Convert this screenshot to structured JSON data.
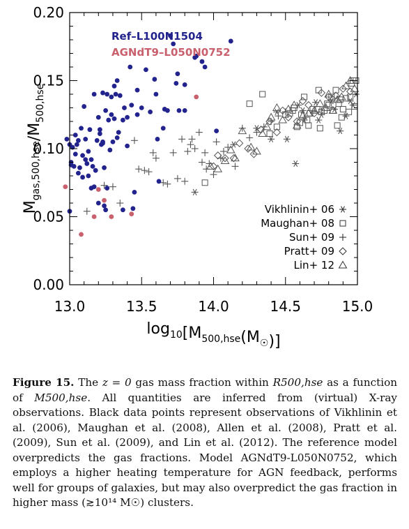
{
  "chart_data": {
    "type": "scatter",
    "xlabel": "log10[M500,hse(M☉)]",
    "ylabel": "Mgas,500,hse/M500,hse",
    "xlim": [
      13.0,
      15.0
    ],
    "ylim": [
      0.0,
      0.2
    ],
    "x_ticks": [
      "13.0",
      "13.5",
      "14.0",
      "14.5",
      "15.0"
    ],
    "y_ticks": [
      "0.00",
      "0.05",
      "0.10",
      "0.15",
      "0.20"
    ],
    "grid": false,
    "legend_top_left": [
      "Ref–L100N1504",
      "AGNdT9–L050N0752"
    ],
    "legend_bottom_right": [
      "Vikhlinin+ 06",
      "Maughan+ 08",
      "Sun+ 09",
      "Pratt+ 09",
      "Lin+ 12"
    ],
    "colors": {
      "ref": "#23238e",
      "agn": "#c9606e",
      "obs": "#555555"
    },
    "series": [
      {
        "name": "Ref–L100N1504",
        "marker": "filled-circle",
        "color": "#23238e",
        "points": [
          [
            12.98,
            0.107
          ],
          [
            13.0,
            0.103
          ],
          [
            13.0,
            0.054
          ],
          [
            13.01,
            0.088
          ],
          [
            13.01,
            0.09
          ],
          [
            13.02,
            0.101
          ],
          [
            13.03,
            0.087
          ],
          [
            13.04,
            0.096
          ],
          [
            13.04,
            0.11
          ],
          [
            13.05,
            0.103
          ],
          [
            13.06,
            0.106
          ],
          [
            13.06,
            0.082
          ],
          [
            13.07,
            0.086
          ],
          [
            13.08,
            0.115
          ],
          [
            13.09,
            0.095
          ],
          [
            13.09,
            0.079
          ],
          [
            13.1,
            0.131
          ],
          [
            13.11,
            0.107
          ],
          [
            13.11,
            0.092
          ],
          [
            13.12,
            0.089
          ],
          [
            13.13,
            0.08
          ],
          [
            13.13,
            0.098
          ],
          [
            13.14,
            0.114
          ],
          [
            13.15,
            0.092
          ],
          [
            13.15,
            0.071
          ],
          [
            13.16,
            0.087
          ],
          [
            13.17,
            0.14
          ],
          [
            13.17,
            0.072
          ],
          [
            13.18,
            0.084
          ],
          [
            13.19,
            0.106
          ],
          [
            13.2,
            0.123
          ],
          [
            13.2,
            0.06
          ],
          [
            13.21,
            0.111
          ],
          [
            13.21,
            0.114
          ],
          [
            13.22,
            0.103
          ],
          [
            13.23,
            0.105
          ],
          [
            13.23,
            0.104
          ],
          [
            13.23,
            0.141
          ],
          [
            13.24,
            0.086
          ],
          [
            13.24,
            0.058
          ],
          [
            13.25,
            0.128
          ],
          [
            13.25,
            0.055
          ],
          [
            13.26,
            0.071
          ],
          [
            13.26,
            0.14
          ],
          [
            13.27,
            0.121
          ],
          [
            13.28,
            0.099
          ],
          [
            13.29,
            0.125
          ],
          [
            13.29,
            0.138
          ],
          [
            13.3,
            0.105
          ],
          [
            13.31,
            0.146
          ],
          [
            13.31,
            0.122
          ],
          [
            13.32,
            0.14
          ],
          [
            13.33,
            0.15
          ],
          [
            13.33,
            0.108
          ],
          [
            13.34,
            0.112
          ],
          [
            13.35,
            0.139
          ],
          [
            13.37,
            0.121
          ],
          [
            13.37,
            0.055
          ],
          [
            13.38,
            0.13
          ],
          [
            13.4,
            0.102
          ],
          [
            13.4,
            0.123
          ],
          [
            13.42,
            0.16
          ],
          [
            13.43,
            0.132
          ],
          [
            13.44,
            0.056
          ],
          [
            13.45,
            0.068
          ],
          [
            13.47,
            0.125
          ],
          [
            13.47,
            0.143
          ],
          [
            13.5,
            0.13
          ],
          [
            13.53,
            0.158
          ],
          [
            13.56,
            0.127
          ],
          [
            13.59,
            0.151
          ],
          [
            13.6,
            0.14
          ],
          [
            13.61,
            0.107
          ],
          [
            13.62,
            0.076
          ],
          [
            13.65,
            0.115
          ],
          [
            13.66,
            0.129
          ],
          [
            13.68,
            0.128
          ],
          [
            13.7,
            0.183
          ],
          [
            13.72,
            0.177
          ],
          [
            13.74,
            0.148
          ],
          [
            13.75,
            0.155
          ],
          [
            13.76,
            0.128
          ],
          [
            13.8,
            0.128
          ],
          [
            13.8,
            0.147
          ],
          [
            13.87,
            0.167
          ],
          [
            13.88,
            0.168
          ],
          [
            13.92,
            0.164
          ],
          [
            13.94,
            0.16
          ],
          [
            14.02,
            0.113
          ],
          [
            14.12,
            0.179
          ]
        ]
      },
      {
        "name": "AGNdT9–L050N0752",
        "marker": "filled-circle",
        "color": "#c9606e",
        "points": [
          [
            12.97,
            0.072
          ],
          [
            13.08,
            0.037
          ],
          [
            13.17,
            0.05
          ],
          [
            13.2,
            0.07
          ],
          [
            13.24,
            0.062
          ],
          [
            13.29,
            0.05
          ],
          [
            13.43,
            0.052
          ],
          [
            13.88,
            0.138
          ]
        ]
      },
      {
        "name": "Vikhlinin+ 06",
        "marker": "asterisk",
        "color": "#555555",
        "points": [
          [
            13.87,
            0.068
          ],
          [
            14.14,
            0.103
          ],
          [
            14.3,
            0.115
          ],
          [
            14.4,
            0.107
          ],
          [
            14.44,
            0.127
          ],
          [
            14.51,
            0.107
          ],
          [
            14.57,
            0.089
          ],
          [
            14.59,
            0.132
          ],
          [
            14.62,
            0.128
          ],
          [
            14.63,
            0.121
          ],
          [
            14.71,
            0.134
          ],
          [
            14.73,
            0.121
          ],
          [
            14.75,
            0.125
          ],
          [
            14.82,
            0.135
          ],
          [
            14.84,
            0.129
          ],
          [
            14.88,
            0.113
          ],
          [
            14.92,
            0.124
          ],
          [
            14.95,
            0.135
          ],
          [
            14.97,
            0.132
          ],
          [
            14.99,
            0.14
          ]
        ]
      },
      {
        "name": "Maughan+ 08",
        "marker": "square",
        "color": "#555555",
        "points": [
          [
            13.94,
            0.075
          ],
          [
            14.25,
            0.133
          ],
          [
            14.34,
            0.14
          ],
          [
            14.39,
            0.111
          ],
          [
            14.44,
            0.116
          ],
          [
            14.5,
            0.125
          ],
          [
            14.53,
            0.126
          ],
          [
            14.55,
            0.128
          ],
          [
            14.56,
            0.13
          ],
          [
            14.58,
            0.116
          ],
          [
            14.6,
            0.119
          ],
          [
            14.61,
            0.125
          ],
          [
            14.63,
            0.138
          ],
          [
            14.65,
            0.121
          ],
          [
            14.66,
            0.117
          ],
          [
            14.67,
            0.126
          ],
          [
            14.69,
            0.129
          ],
          [
            14.72,
            0.129
          ],
          [
            14.73,
            0.143
          ],
          [
            14.74,
            0.115
          ],
          [
            14.75,
            0.127
          ],
          [
            14.77,
            0.128
          ],
          [
            14.79,
            0.133
          ],
          [
            14.8,
            0.132
          ],
          [
            14.82,
            0.138
          ],
          [
            14.83,
            0.128
          ],
          [
            14.85,
            0.143
          ],
          [
            14.86,
            0.117
          ],
          [
            14.87,
            0.133
          ],
          [
            14.88,
            0.136
          ],
          [
            14.89,
            0.123
          ],
          [
            14.9,
            0.129
          ],
          [
            14.92,
            0.137
          ],
          [
            14.94,
            0.127
          ],
          [
            14.95,
            0.138
          ],
          [
            14.96,
            0.148
          ],
          [
            14.97,
            0.15
          ],
          [
            14.98,
            0.131
          ],
          [
            14.99,
            0.15
          ]
        ]
      },
      {
        "name": "Sun+ 09",
        "marker": "plus",
        "color": "#555555",
        "points": [
          [
            13.12,
            0.054
          ],
          [
            13.24,
            0.073
          ],
          [
            13.3,
            0.072
          ],
          [
            13.35,
            0.06
          ],
          [
            13.45,
            0.106
          ],
          [
            13.48,
            0.085
          ],
          [
            13.52,
            0.084
          ],
          [
            13.55,
            0.083
          ],
          [
            13.58,
            0.097
          ],
          [
            13.6,
            0.093
          ],
          [
            13.65,
            0.075
          ],
          [
            13.68,
            0.074
          ],
          [
            13.72,
            0.097
          ],
          [
            13.75,
            0.078
          ],
          [
            13.78,
            0.107
          ],
          [
            13.8,
            0.076
          ],
          [
            13.82,
            0.098
          ],
          [
            13.84,
            0.103
          ],
          [
            13.85,
            0.107
          ],
          [
            13.87,
            0.1
          ],
          [
            13.9,
            0.112
          ],
          [
            13.92,
            0.09
          ],
          [
            13.94,
            0.097
          ],
          [
            13.95,
            0.085
          ],
          [
            13.97,
            0.089
          ],
          [
            14.0,
            0.081
          ],
          [
            14.02,
            0.105
          ],
          [
            14.05,
            0.093
          ],
          [
            14.07,
            0.098
          ],
          [
            14.1,
            0.101
          ],
          [
            14.15,
            0.087
          ],
          [
            14.2,
            0.115
          ],
          [
            14.25,
            0.108
          ],
          [
            14.3,
            0.112
          ],
          [
            14.35,
            0.116
          ],
          [
            14.4,
            0.12
          ],
          [
            14.45,
            0.124
          ],
          [
            14.5,
            0.127
          ]
        ]
      },
      {
        "name": "Pratt+ 09",
        "marker": "diamond",
        "color": "#555555",
        "points": [
          [
            14.0,
            0.087
          ],
          [
            14.03,
            0.095
          ],
          [
            14.08,
            0.093
          ],
          [
            14.14,
            0.093
          ],
          [
            14.18,
            0.104
          ],
          [
            14.24,
            0.1
          ],
          [
            14.28,
            0.096
          ],
          [
            14.33,
            0.114
          ],
          [
            14.39,
            0.12
          ],
          [
            14.44,
            0.112
          ],
          [
            14.48,
            0.128
          ],
          [
            14.52,
            0.123
          ],
          [
            14.58,
            0.12
          ],
          [
            14.62,
            0.135
          ],
          [
            14.66,
            0.132
          ],
          [
            14.7,
            0.126
          ],
          [
            14.75,
            0.141
          ],
          [
            14.8,
            0.138
          ],
          [
            14.85,
            0.139
          ],
          [
            14.9,
            0.144
          ],
          [
            14.95,
            0.142
          ]
        ]
      },
      {
        "name": "Lin+ 12",
        "marker": "triangle",
        "color": "#555555",
        "points": [
          [
            13.98,
            0.087
          ],
          [
            14.03,
            0.085
          ],
          [
            14.08,
            0.091
          ],
          [
            14.12,
            0.099
          ],
          [
            14.15,
            0.093
          ],
          [
            14.2,
            0.113
          ],
          [
            14.26,
            0.101
          ],
          [
            14.3,
            0.098
          ],
          [
            14.34,
            0.111
          ],
          [
            14.37,
            0.116
          ],
          [
            14.4,
            0.123
          ],
          [
            14.44,
            0.13
          ],
          [
            14.48,
            0.121
          ],
          [
            14.52,
            0.129
          ],
          [
            14.56,
            0.132
          ],
          [
            14.58,
            0.117
          ],
          [
            14.62,
            0.124
          ],
          [
            14.66,
            0.126
          ],
          [
            14.7,
            0.128
          ],
          [
            14.74,
            0.133
          ],
          [
            14.78,
            0.13
          ],
          [
            14.8,
            0.14
          ],
          [
            14.83,
            0.128
          ],
          [
            14.86,
            0.136
          ],
          [
            14.89,
            0.138
          ],
          [
            14.92,
            0.146
          ],
          [
            14.95,
            0.15
          ],
          [
            14.98,
            0.144
          ]
        ]
      }
    ]
  },
  "caption": {
    "label": "Figure 15.",
    "text_1": " The ",
    "z_eq": "z = 0",
    "text_2": " gas mass fraction within ",
    "R500": "R500,hse",
    "text_3": " as a function of ",
    "M500": "M500,hse",
    "text_4": ". All quantities are inferred from (virtual) X-ray observations. Black data points represent observations of Vikhlinin et al. (2006), Maughan et al. (2008), Allen et al. (2008), Pratt et al. (2009), Sun et al. (2009), and Lin et al. (2012). The reference model overpredicts the gas fractions. Model AGNdT9-L050N0752, which employs a higher heating temperature for AGN feedback, performs well for groups of galaxies, but may also overpredict the gas fraction in higher mass (",
    "mass_limit": "≳10¹⁴ M☉",
    "text_5": ") clusters."
  }
}
